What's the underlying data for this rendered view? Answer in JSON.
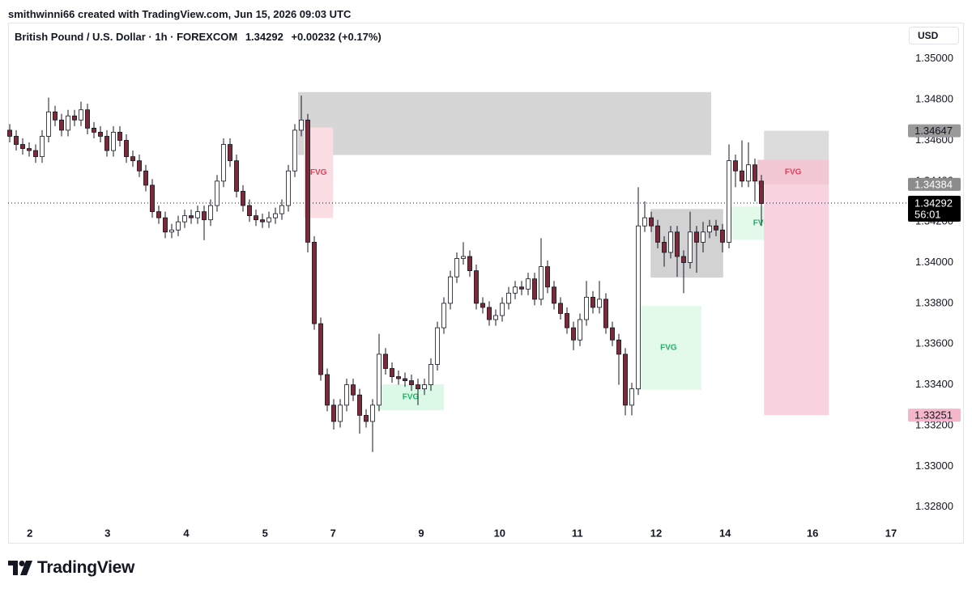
{
  "header": {
    "credit": "smithwinni66 created with TradingView.com, Jun 15, 2026 09:03 UTC",
    "symbol": "British Pound / U.S. Dollar · 1h · FOREXCOM",
    "price": "1.34292",
    "change": "+0.00232 (+0.17%)",
    "currency": "USD"
  },
  "footer": {
    "logo": "TradingView"
  },
  "chart_data": {
    "type": "candlestick",
    "up_color": "#ffffff",
    "down_color": "#7a2a38",
    "wick_color": "#131722",
    "grid": false,
    "xlim": [
      -0.25,
      137.25
    ],
    "ylim": [
      1.3262,
      1.3517
    ],
    "xticks": [
      {
        "value": 3.1,
        "label": "2"
      },
      {
        "value": 15.1,
        "label": "3"
      },
      {
        "value": 27.25,
        "label": "4"
      },
      {
        "value": 39.4,
        "label": "5"
      },
      {
        "value": 49.9,
        "label": "7"
      },
      {
        "value": 63.5,
        "label": "9"
      },
      {
        "value": 75.6,
        "label": "10"
      },
      {
        "value": 87.6,
        "label": "11"
      },
      {
        "value": 99.75,
        "label": "12"
      },
      {
        "value": 110.4,
        "label": "14"
      },
      {
        "value": 123.9,
        "label": "16"
      },
      {
        "value": 136,
        "label": "17"
      }
    ],
    "yticks": [
      {
        "value": 1.328,
        "label": "1.32800"
      },
      {
        "value": 1.33,
        "label": "1.33000"
      },
      {
        "value": 1.332,
        "label": "1.33200"
      },
      {
        "value": 1.334,
        "label": "1.33400"
      },
      {
        "value": 1.336,
        "label": "1.33600"
      },
      {
        "value": 1.338,
        "label": "1.33800"
      },
      {
        "value": 1.34,
        "label": "1.34000"
      },
      {
        "value": 1.342,
        "label": "1.34200"
      },
      {
        "value": 1.344,
        "label": "1.34400"
      },
      {
        "value": 1.346,
        "label": "1.34600"
      },
      {
        "value": 1.348,
        "label": "1.34800"
      },
      {
        "value": 1.35,
        "label": "1.35000"
      }
    ],
    "candles": [
      [
        1.3465,
        1.3468,
        1.3459,
        1.3462
      ],
      [
        1.3462,
        1.3465,
        1.3455,
        1.3458
      ],
      [
        1.3458,
        1.3461,
        1.3453,
        1.3456
      ],
      [
        1.3456,
        1.3459,
        1.3452,
        1.3455
      ],
      [
        1.3455,
        1.3458,
        1.3449,
        1.3452
      ],
      [
        1.3452,
        1.3465,
        1.3449,
        1.3462
      ],
      [
        1.3462,
        1.3481,
        1.3459,
        1.3474
      ],
      [
        1.3474,
        1.3477,
        1.3467,
        1.347
      ],
      [
        1.347,
        1.3473,
        1.3462,
        1.3465
      ],
      [
        1.3465,
        1.3475,
        1.3462,
        1.3472
      ],
      [
        1.3472,
        1.3475,
        1.3467,
        1.347
      ],
      [
        1.347,
        1.3479,
        1.3467,
        1.3475
      ],
      [
        1.3475,
        1.3478,
        1.3463,
        1.3466
      ],
      [
        1.3466,
        1.3469,
        1.3461,
        1.3464
      ],
      [
        1.3464,
        1.3467,
        1.3459,
        1.3462
      ],
      [
        1.3462,
        1.3465,
        1.3452,
        1.3455
      ],
      [
        1.3455,
        1.3467,
        1.3452,
        1.3464
      ],
      [
        1.3464,
        1.3467,
        1.3457,
        1.346
      ],
      [
        1.346,
        1.3463,
        1.3449,
        1.3452
      ],
      [
        1.3452,
        1.3455,
        1.3447,
        1.345
      ],
      [
        1.345,
        1.3453,
        1.3442,
        1.3445
      ],
      [
        1.3445,
        1.3448,
        1.3435,
        1.3438
      ],
      [
        1.3438,
        1.3441,
        1.3422,
        1.3425
      ],
      [
        1.3425,
        1.3428,
        1.3419,
        1.3422
      ],
      [
        1.3422,
        1.3425,
        1.3412,
        1.3415
      ],
      [
        1.3415,
        1.3419,
        1.3412,
        1.3416
      ],
      [
        1.3416,
        1.3423,
        1.3413,
        1.342
      ],
      [
        1.342,
        1.3426,
        1.3417,
        1.3423
      ],
      [
        1.3423,
        1.3426,
        1.3419,
        1.3422
      ],
      [
        1.3422,
        1.3428,
        1.3419,
        1.3425
      ],
      [
        1.3425,
        1.3428,
        1.3411,
        1.3421
      ],
      [
        1.3421,
        1.3431,
        1.3418,
        1.3428
      ],
      [
        1.3428,
        1.3443,
        1.3425,
        1.344
      ],
      [
        1.344,
        1.3461,
        1.3437,
        1.3458
      ],
      [
        1.3458,
        1.3461,
        1.3447,
        1.345
      ],
      [
        1.345,
        1.3453,
        1.3432,
        1.3435
      ],
      [
        1.3435,
        1.3438,
        1.3425,
        1.3428
      ],
      [
        1.3428,
        1.3431,
        1.342,
        1.3423
      ],
      [
        1.3423,
        1.3426,
        1.3418,
        1.3421
      ],
      [
        1.3421,
        1.3424,
        1.3417,
        1.342
      ],
      [
        1.342,
        1.3425,
        1.3417,
        1.3422
      ],
      [
        1.3422,
        1.3427,
        1.3419,
        1.3424
      ],
      [
        1.3424,
        1.3431,
        1.3421,
        1.3428
      ],
      [
        1.3428,
        1.3448,
        1.3425,
        1.3445
      ],
      [
        1.3445,
        1.3468,
        1.3442,
        1.3465
      ],
      [
        1.3465,
        1.3482,
        1.3462,
        1.347
      ],
      [
        1.347,
        1.3473,
        1.3405,
        1.341
      ],
      [
        1.341,
        1.3413,
        1.3367,
        1.337
      ],
      [
        1.337,
        1.3373,
        1.3342,
        1.3345
      ],
      [
        1.3345,
        1.3348,
        1.3327,
        1.333
      ],
      [
        1.333,
        1.3333,
        1.3318,
        1.3322
      ],
      [
        1.3322,
        1.3333,
        1.3319,
        1.333
      ],
      [
        1.333,
        1.3343,
        1.3327,
        1.334
      ],
      [
        1.334,
        1.3343,
        1.3332,
        1.3335
      ],
      [
        1.3335,
        1.3338,
        1.3316,
        1.3325
      ],
      [
        1.3325,
        1.3328,
        1.3319,
        1.3322
      ],
      [
        1.3322,
        1.3333,
        1.3307,
        1.333
      ],
      [
        1.333,
        1.3365,
        1.3327,
        1.3355
      ],
      [
        1.3355,
        1.3358,
        1.3345,
        1.3348
      ],
      [
        1.3348,
        1.3351,
        1.3341,
        1.3344
      ],
      [
        1.3344,
        1.3347,
        1.334,
        1.3343
      ],
      [
        1.3343,
        1.3346,
        1.3339,
        1.3342
      ],
      [
        1.3342,
        1.3345,
        1.3337,
        1.334
      ],
      [
        1.334,
        1.3343,
        1.333,
        1.3338
      ],
      [
        1.3338,
        1.3343,
        1.3335,
        1.334
      ],
      [
        1.334,
        1.3353,
        1.3337,
        1.335
      ],
      [
        1.335,
        1.3371,
        1.3347,
        1.3368
      ],
      [
        1.3368,
        1.3383,
        1.3365,
        1.338
      ],
      [
        1.338,
        1.3396,
        1.3377,
        1.3393
      ],
      [
        1.3393,
        1.3405,
        1.339,
        1.3402
      ],
      [
        1.3402,
        1.341,
        1.3399,
        1.3403
      ],
      [
        1.3403,
        1.3406,
        1.3393,
        1.3396
      ],
      [
        1.3396,
        1.3399,
        1.3377,
        1.338
      ],
      [
        1.338,
        1.3383,
        1.3375,
        1.3378
      ],
      [
        1.3378,
        1.3381,
        1.3369,
        1.3372
      ],
      [
        1.3372,
        1.3377,
        1.3369,
        1.3374
      ],
      [
        1.3374,
        1.3383,
        1.3371,
        1.338
      ],
      [
        1.338,
        1.3388,
        1.3377,
        1.3385
      ],
      [
        1.3385,
        1.3391,
        1.3382,
        1.3388
      ],
      [
        1.3388,
        1.3391,
        1.3384,
        1.3387
      ],
      [
        1.3387,
        1.3395,
        1.3384,
        1.3392
      ],
      [
        1.3392,
        1.3395,
        1.3379,
        1.3382
      ],
      [
        1.3382,
        1.3412,
        1.3379,
        1.3398
      ],
      [
        1.3398,
        1.3401,
        1.3385,
        1.3388
      ],
      [
        1.3388,
        1.3391,
        1.3377,
        1.338
      ],
      [
        1.338,
        1.3383,
        1.3372,
        1.3375
      ],
      [
        1.3375,
        1.3378,
        1.3365,
        1.3368
      ],
      [
        1.3368,
        1.3371,
        1.3357,
        1.3362
      ],
      [
        1.3362,
        1.3375,
        1.3359,
        1.3372
      ],
      [
        1.3372,
        1.3391,
        1.3369,
        1.3383
      ],
      [
        1.3383,
        1.3386,
        1.3375,
        1.3378
      ],
      [
        1.3378,
        1.3391,
        1.3375,
        1.3382
      ],
      [
        1.3382,
        1.3385,
        1.3365,
        1.3368
      ],
      [
        1.3368,
        1.3371,
        1.3359,
        1.3362
      ],
      [
        1.3362,
        1.3365,
        1.334,
        1.3355
      ],
      [
        1.3355,
        1.3358,
        1.3325,
        1.333
      ],
      [
        1.333,
        1.3341,
        1.3325,
        1.3338
      ],
      [
        1.3338,
        1.3437,
        1.3335,
        1.3418
      ],
      [
        1.3418,
        1.343,
        1.3415,
        1.3422
      ],
      [
        1.3422,
        1.3425,
        1.3415,
        1.3418
      ],
      [
        1.3418,
        1.3421,
        1.3407,
        1.341
      ],
      [
        1.341,
        1.3413,
        1.3398,
        1.3405
      ],
      [
        1.3405,
        1.3418,
        1.3402,
        1.3415
      ],
      [
        1.3415,
        1.3418,
        1.3393,
        1.3403
      ],
      [
        1.3403,
        1.3406,
        1.3385,
        1.34
      ],
      [
        1.34,
        1.3425,
        1.3397,
        1.3415
      ],
      [
        1.3415,
        1.3418,
        1.3395,
        1.341
      ],
      [
        1.341,
        1.342,
        1.3405,
        1.3415
      ],
      [
        1.3415,
        1.3421,
        1.3412,
        1.3418
      ],
      [
        1.3418,
        1.3421,
        1.3413,
        1.3416
      ],
      [
        1.3416,
        1.3419,
        1.3405,
        1.341
      ],
      [
        1.341,
        1.3458,
        1.3407,
        1.345
      ],
      [
        1.345,
        1.3453,
        1.3437,
        1.3445
      ],
      [
        1.3445,
        1.346,
        1.3437,
        1.344
      ],
      [
        1.344,
        1.3459,
        1.3437,
        1.3448
      ],
      [
        1.3448,
        1.3451,
        1.343,
        1.344
      ],
      [
        1.344,
        1.3443,
        1.3418,
        1.3429
      ]
    ],
    "zones": [
      {
        "x": [
          44.5,
          108.25
        ],
        "y": [
          1.34528,
          1.34837
        ],
        "color": "#d6d6d6"
      },
      {
        "x": [
          45.4,
          49.9
        ],
        "y": [
          1.34219,
          1.34663
        ],
        "color": "#f9dde3",
        "label": "FVG",
        "label_color": "#e0405a"
      },
      {
        "x": [
          56.75,
          67
        ],
        "y": [
          1.33276,
          1.33402
        ],
        "color": "#dcf8e6",
        "label": "FVG",
        "label_color": "#22b36a"
      },
      {
        "x": [
          96.6,
          106.75
        ],
        "y": [
          1.33375,
          1.33787
        ],
        "color": "#e3f9ea",
        "label": "FVG",
        "label_color": "#22b36a"
      },
      {
        "x": [
          98.9,
          110.1
        ],
        "y": [
          1.33926,
          1.34263
        ],
        "color": "#d2d2d2"
      },
      {
        "x": [
          111,
          121
        ],
        "y": [
          1.34112,
          1.34275
        ],
        "color": "#e3f9ea",
        "label": "FVG",
        "label_color": "#22b36a"
      },
      {
        "x": [
          116.4,
          126.4
        ],
        "y": [
          1.33251,
          1.34384
        ],
        "color": "#f8d3df"
      },
      {
        "x": [
          116.4,
          126.4
        ],
        "y": [
          1.34384,
          1.34647
        ],
        "color": "#dcdcdc"
      },
      {
        "x": [
          115.4,
          126.4
        ],
        "y": [
          1.34384,
          1.34505
        ],
        "color": "#f2c8d3",
        "label": "FVG",
        "label_color": "#e0405a"
      }
    ],
    "last_price": 1.34292,
    "countdown": "56:01",
    "last_price_color": "#000000",
    "price_labels": [
      {
        "value": 1.34647,
        "color": "#9a9a9a",
        "text_color": "#131722"
      },
      {
        "value": 1.34384,
        "color": "#8c8c8c",
        "text_color": "#ffffff"
      },
      {
        "value": 1.33251,
        "color": "#f6b6c9",
        "text_color": "#131722"
      }
    ]
  }
}
